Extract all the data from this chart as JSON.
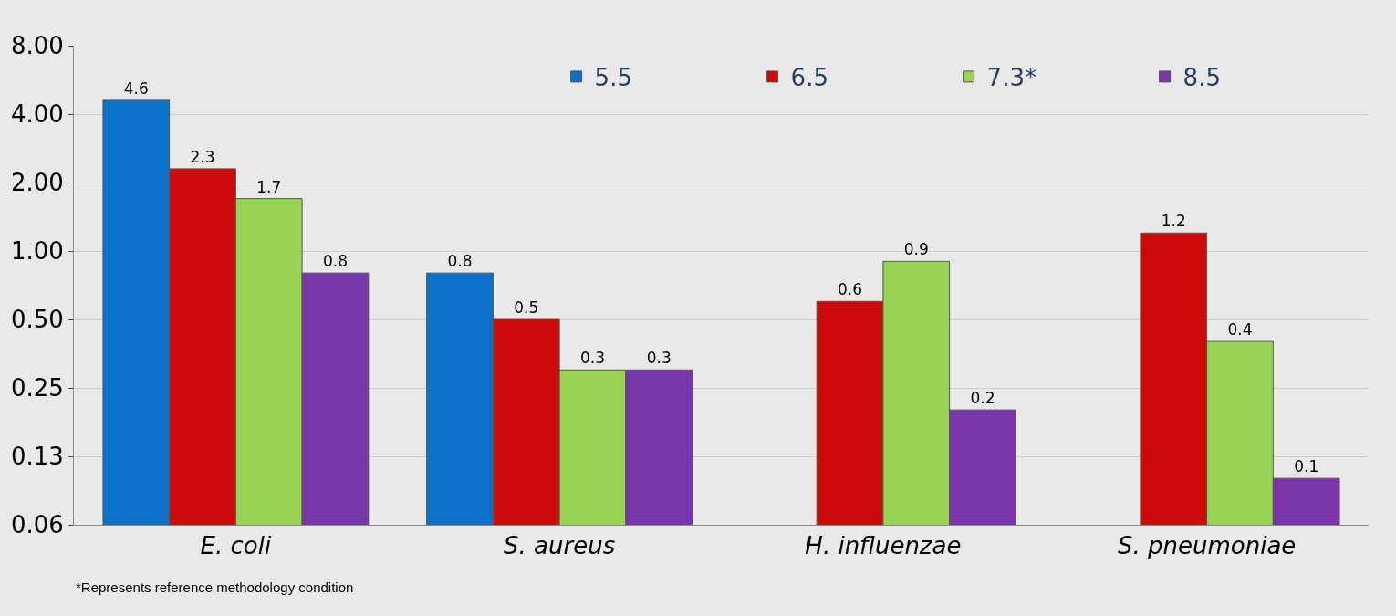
{
  "chart_data": {
    "type": "bar",
    "categories": [
      "E. coli",
      "S. aureus",
      "H. influenzae",
      "S. pneumoniae"
    ],
    "series": [
      {
        "name": "5.5",
        "color": "#0b72c9",
        "values": [
          4.6,
          0.8,
          null,
          null
        ]
      },
      {
        "name": "6.5",
        "color": "#cc0a0a",
        "values": [
          2.3,
          0.5,
          0.6,
          1.2
        ]
      },
      {
        "name": "7.3*",
        "color": "#99d354",
        "values": [
          1.7,
          0.3,
          0.9,
          0.4
        ]
      },
      {
        "name": "8.5",
        "color": "#7a35aa",
        "values": [
          0.8,
          0.3,
          0.2,
          0.1
        ]
      }
    ],
    "log": "y",
    "ylim": [
      0.0625,
      8
    ],
    "yticks": [
      {
        "value": 0.0625,
        "label": "0.06"
      },
      {
        "value": 0.125,
        "label": "0.13"
      },
      {
        "value": 0.25,
        "label": "0.25"
      },
      {
        "value": 0.5,
        "label": "0.50"
      },
      {
        "value": 1,
        "label": "1.00"
      },
      {
        "value": 2,
        "label": "2.00"
      },
      {
        "value": 4,
        "label": "4.00"
      },
      {
        "value": 8,
        "label": "8.00"
      }
    ],
    "grid": "y",
    "legend": "top right",
    "data_labels": true,
    "annotations": [
      "*Represents reference methodology condition"
    ]
  }
}
